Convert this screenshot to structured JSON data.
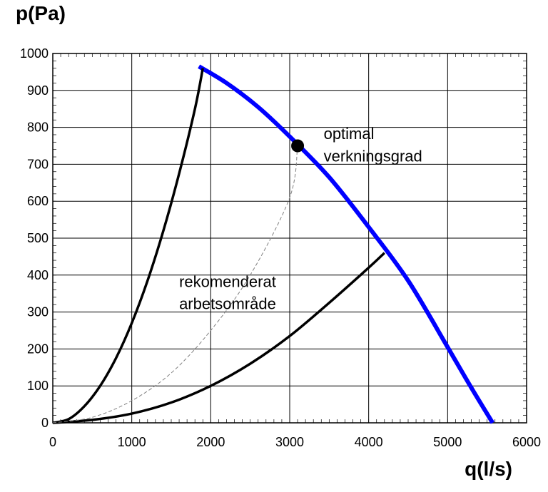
{
  "chart_data": {
    "type": "line",
    "title": "",
    "xlabel": "q(l/s)",
    "ylabel": "p(Pa)",
    "xlim": [
      0,
      6000
    ],
    "ylim": [
      0,
      1000
    ],
    "x_ticks": [
      0,
      1000,
      2000,
      3000,
      4000,
      5000,
      6000
    ],
    "y_ticks": [
      0,
      100,
      200,
      300,
      400,
      500,
      600,
      700,
      800,
      900,
      1000
    ],
    "grid": true,
    "series": [
      {
        "name": "fan curve",
        "color": "#0000ff",
        "x": [
          1850,
          2200,
          2600,
          3000,
          3500,
          4000,
          4500,
          5000,
          5300,
          5570
        ],
        "y": [
          965,
          920,
          855,
          775,
          665,
          530,
          385,
          205,
          95,
          0
        ]
      },
      {
        "name": "upper system curve",
        "color": "#000000",
        "x": [
          0,
          200,
          400,
          600,
          800,
          1000,
          1200,
          1400,
          1600,
          1800,
          1900
        ],
        "y": [
          0,
          10,
          45,
          100,
          175,
          270,
          385,
          520,
          675,
          850,
          960
        ]
      },
      {
        "name": "lower system curve",
        "color": "#000000",
        "x": [
          0,
          500,
          1000,
          1500,
          2000,
          2500,
          3000,
          3500,
          4000,
          4200
        ],
        "y": [
          0,
          8,
          25,
          55,
          100,
          160,
          235,
          325,
          420,
          460
        ]
      },
      {
        "name": "optimal efficiency system curve",
        "color": "#808080",
        "dashed": true,
        "x": [
          0,
          500,
          1000,
          1500,
          2000,
          2500,
          3000,
          3100
        ],
        "y": [
          0,
          15,
          60,
          135,
          250,
          400,
          610,
          750
        ]
      }
    ],
    "points": [
      {
        "name": "optimal point",
        "x": 3100,
        "y": 750
      }
    ],
    "annotations": [
      {
        "text": "optimal",
        "x": 3430,
        "y": 768
      },
      {
        "text": "verkningsgrad",
        "x": 3430,
        "y": 708
      },
      {
        "text": "rekomenderat",
        "x": 1600,
        "y": 368
      },
      {
        "text": "arbetsområde",
        "x": 1600,
        "y": 308
      }
    ]
  }
}
